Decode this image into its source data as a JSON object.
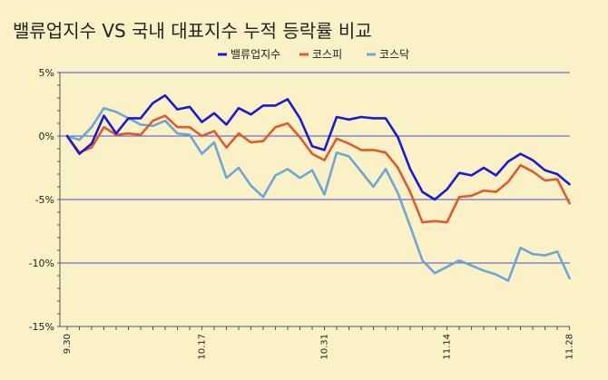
{
  "chart_data": {
    "type": "line",
    "title": "밸류업지수 VS 국내 대표지수 누적 등락률 비교",
    "ylim": [
      -15,
      5
    ],
    "yticks": [
      5,
      0,
      -5,
      -10,
      -15
    ],
    "ytick_labels": [
      "5%",
      "0%",
      "-5%",
      "-10%",
      "-15%"
    ],
    "grid": true,
    "legend_position": "top-center",
    "xtick_labels": [
      {
        "index": 0,
        "label": "9.30"
      },
      {
        "index": 11,
        "label": "10.17"
      },
      {
        "index": 21,
        "label": "10.31"
      },
      {
        "index": 31,
        "label": "11.14"
      },
      {
        "index": 41,
        "label": "11.28"
      }
    ],
    "series": [
      {
        "name": "밸류업지수",
        "color": "#1a1ad6",
        "values": [
          0,
          -1.4,
          -0.6,
          1.6,
          0.2,
          1.4,
          1.4,
          2.6,
          3.2,
          2.1,
          2.3,
          1.1,
          1.8,
          0.9,
          2.2,
          1.7,
          2.4,
          2.4,
          2.9,
          1.4,
          -0.8,
          -1.1,
          1.5,
          1.3,
          1.5,
          1.4,
          1.4,
          -0.1,
          -2.6,
          -4.4,
          -5.0,
          -4.2,
          -2.9,
          -3.1,
          -2.5,
          -3.1,
          -2.0,
          -1.4,
          -1.9,
          -2.7,
          -3.0,
          -3.8
        ]
      },
      {
        "name": "코스피",
        "color": "#e15a2b",
        "values": [
          0,
          -1.3,
          -0.9,
          0.7,
          0.1,
          0.2,
          0.1,
          1.2,
          1.6,
          0.7,
          0.7,
          0.0,
          0.4,
          -0.9,
          0.2,
          -0.5,
          -0.4,
          0.7,
          1.0,
          -0.1,
          -1.4,
          -1.9,
          -0.2,
          -0.6,
          -1.1,
          -1.1,
          -1.3,
          -2.5,
          -4.4,
          -6.8,
          -6.7,
          -6.8,
          -4.8,
          -4.7,
          -4.3,
          -4.4,
          -3.6,
          -2.3,
          -2.8,
          -3.5,
          -3.4,
          -5.3
        ]
      },
      {
        "name": "코스닥",
        "color": "#6ea6d6",
        "values": [
          0,
          -0.3,
          0.7,
          2.2,
          1.9,
          1.4,
          0.9,
          0.8,
          1.2,
          0.2,
          0.1,
          -1.4,
          -0.5,
          -3.3,
          -2.5,
          -3.9,
          -4.8,
          -3.1,
          -2.6,
          -3.3,
          -2.7,
          -4.6,
          -1.3,
          -1.6,
          -2.8,
          -4.0,
          -2.6,
          -4.5,
          -7.1,
          -9.8,
          -10.8,
          -10.3,
          -9.8,
          -10.2,
          -10.6,
          -10.9,
          -11.4,
          -8.8,
          -9.3,
          -9.4,
          -9.1,
          -11.2
        ]
      }
    ]
  }
}
